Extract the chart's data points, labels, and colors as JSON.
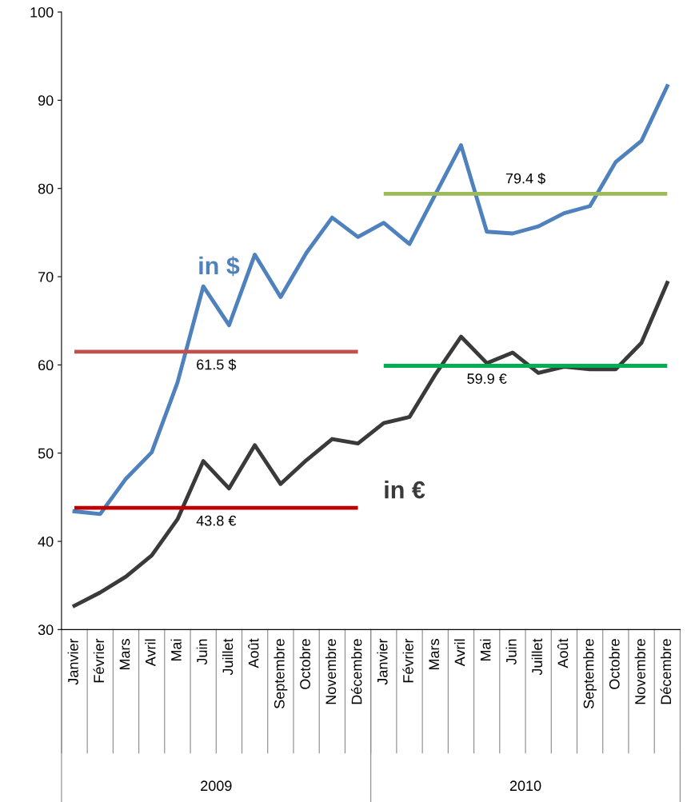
{
  "chart_data": {
    "type": "line",
    "categories": [
      "Janvier",
      "Février",
      "Mars",
      "Avril",
      "Mai",
      "Juin",
      "Juillet",
      "Août",
      "Septembre",
      "Octobre",
      "Novembre",
      "Décembre",
      "Janvier",
      "Février",
      "Mars",
      "Avril",
      "Mai",
      "Juin",
      "Juillet",
      "Août",
      "Septembre",
      "Octobre",
      "Novembre",
      "Décembre"
    ],
    "ylim": [
      30,
      100
    ],
    "yticks": [
      30,
      40,
      50,
      60,
      70,
      80,
      90,
      100
    ],
    "grid": false,
    "legend": false,
    "marker": "none",
    "line_style": "solid",
    "series": [
      {
        "name": "in $",
        "color": "#4f81bd",
        "values": [
          43.4,
          43.1,
          47.1,
          50.1,
          58.0,
          68.9,
          64.5,
          72.5,
          67.7,
          72.7,
          76.7,
          74.5,
          76.1,
          73.7,
          79.3,
          84.9,
          75.1,
          74.9,
          75.7,
          77.2,
          78.0,
          83.0,
          85.4,
          91.6
        ]
      },
      {
        "name": "in €",
        "color": "#3a3a3a",
        "values": [
          32.7,
          34.2,
          36.0,
          38.4,
          42.5,
          49.1,
          46.0,
          50.9,
          46.5,
          49.2,
          51.6,
          51.1,
          53.4,
          54.1,
          58.9,
          63.2,
          60.2,
          61.4,
          59.1,
          59.8,
          59.5,
          59.5,
          62.5,
          69.3
        ]
      },
      {
        "name": "61.5 $",
        "color": "#c0504d",
        "values": [
          61.5,
          61.5,
          61.5,
          61.5,
          61.5,
          61.5,
          61.5,
          61.5,
          61.5,
          61.5,
          61.5,
          61.5,
          null,
          null,
          null,
          null,
          null,
          null,
          null,
          null,
          null,
          null,
          null,
          null
        ]
      },
      {
        "name": "43.8 €",
        "color": "#c00000",
        "values": [
          43.8,
          43.8,
          43.8,
          43.8,
          43.8,
          43.8,
          43.8,
          43.8,
          43.8,
          43.8,
          43.8,
          43.8,
          null,
          null,
          null,
          null,
          null,
          null,
          null,
          null,
          null,
          null,
          null,
          null
        ]
      },
      {
        "name": "79.4 $",
        "color": "#9bbb59",
        "values": [
          null,
          null,
          null,
          null,
          null,
          null,
          null,
          null,
          null,
          null,
          null,
          null,
          79.4,
          79.4,
          79.4,
          79.4,
          79.4,
          79.4,
          79.4,
          79.4,
          79.4,
          79.4,
          79.4,
          79.4
        ]
      },
      {
        "name": "59.9 €",
        "color": "#00b050",
        "values": [
          null,
          null,
          null,
          null,
          null,
          null,
          null,
          null,
          null,
          null,
          null,
          null,
          59.9,
          59.9,
          59.9,
          59.9,
          59.9,
          59.9,
          59.9,
          59.9,
          59.9,
          59.9,
          59.9,
          59.9
        ]
      }
    ],
    "annotations": [
      "2009",
      "2010"
    ]
  }
}
